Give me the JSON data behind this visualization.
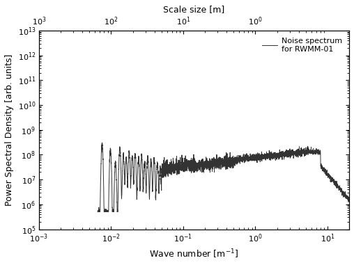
{
  "xlabel": "Wave number [m$^{-1}$]",
  "ylabel": "Power Spectral Density [arb. units]",
  "top_xlabel": "Scale size [m]",
  "legend_label": "Noise spectrum\nfor RWMM-01",
  "line_color": "#333333",
  "line_width": 0.7,
  "xlim": [
    0.001,
    20
  ],
  "ylim": [
    100000.0,
    10000000000000.0
  ],
  "bg_color": "#ffffff",
  "seed": 42,
  "n_points": 4000,
  "spike_freqs": [
    0.0075,
    0.0098,
    0.0115,
    0.0132,
    0.0148,
    0.0162,
    0.0178,
    0.0196,
    0.0215,
    0.024,
    0.0265,
    0.0292,
    0.0322,
    0.0358,
    0.0395,
    0.0438,
    0.048
  ],
  "spike_amps": [
    250000000.0,
    160000000.0,
    50000000.0,
    180000000.0,
    90000000.0,
    70000000.0,
    130000000.0,
    80000000.0,
    110000000.0,
    70000000.0,
    90000000.0,
    50000000.0,
    80000000.0,
    60000000.0,
    70000000.0,
    50000000.0,
    30000000.0
  ]
}
